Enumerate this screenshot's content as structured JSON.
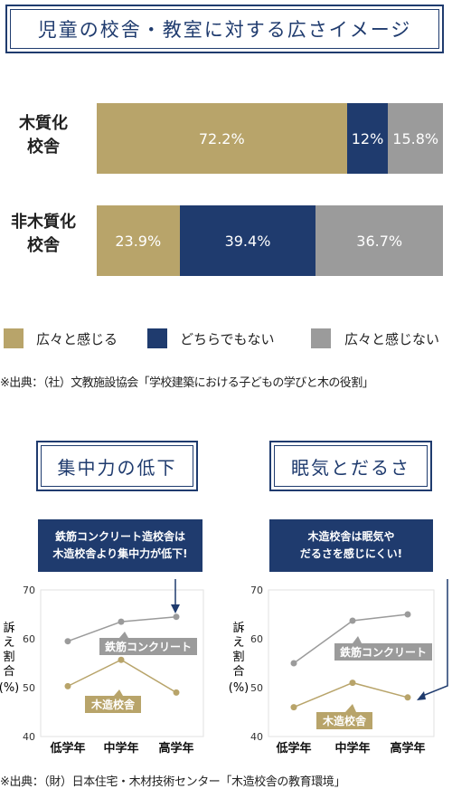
{
  "top_title": "児童の校舎・教室に対する広さイメージ",
  "rows": [
    {
      "label_lines": [
        "木質化",
        "校舎"
      ],
      "values": [
        72.2,
        12,
        15.8
      ],
      "labels": [
        "72.2%",
        "12%",
        "15.8%"
      ]
    },
    {
      "label_lines": [
        "非木質化",
        "校舎"
      ],
      "values": [
        23.9,
        39.4,
        36.7
      ],
      "labels": [
        "23.9%",
        "39.4%",
        "36.7%"
      ]
    }
  ],
  "legend": [
    {
      "label": "広々と感じる",
      "color": "#b8a46a"
    },
    {
      "label": "どちらでもない",
      "color": "#1f3b6e"
    },
    {
      "label": "広々と感じない",
      "color": "#9b9b9b"
    }
  ],
  "note1": "※出典：（社）文教施設協会「学校建築における子どもの学びと木の役割」",
  "note2": "※出典：（財）日本住宅・木材技術センター「木造校舎の教育環境」",
  "left_panel": {
    "title": "集中力の低下",
    "callout_lines": [
      "鉄筋コンクリート造校舎は",
      "木造校舎より集中力が低下!"
    ],
    "ylabel_chars": [
      "訴",
      "え",
      "割",
      "合"
    ],
    "yunit": "(%)"
  },
  "right_panel": {
    "title": "眠気とだるさ",
    "callout_lines": [
      "木造校舎は眠気や",
      "だるさを感じにくい!"
    ],
    "ylabel_chars": [
      "訴",
      "え",
      "割",
      "合"
    ],
    "yunit": "(%)"
  },
  "chart_data": [
    {
      "type": "bar",
      "orientation": "horizontal-stacked",
      "title": "児童の校舎・教室に対する広さイメージ",
      "categories": [
        "木質化校舎",
        "非木質化校舎"
      ],
      "series": [
        {
          "name": "広々と感じる",
          "values": [
            72.2,
            23.9
          ]
        },
        {
          "name": "どちらでもない",
          "values": [
            12,
            39.4
          ]
        },
        {
          "name": "広々と感じない",
          "values": [
            15.8,
            36.7
          ]
        }
      ],
      "legend_position": "bottom"
    },
    {
      "type": "line",
      "title": "集中力の低下",
      "categories": [
        "低学年",
        "中学年",
        "高学年"
      ],
      "series": [
        {
          "name": "鉄筋コンクリート",
          "values": [
            59.5,
            63.5,
            64.5
          ],
          "color": "#9b9b9b"
        },
        {
          "name": "木造校舎",
          "values": [
            50.3,
            55.7,
            49.0
          ],
          "color": "#b8a46a"
        }
      ],
      "ylim": [
        40,
        70
      ],
      "yticks": [
        40,
        50,
        60,
        70
      ],
      "ylabel": "訴え割合(%)",
      "grid": false
    },
    {
      "type": "line",
      "title": "眠気とだるさ",
      "categories": [
        "低学年",
        "中学年",
        "高学年"
      ],
      "series": [
        {
          "name": "鉄筋コンクリート",
          "values": [
            55.0,
            63.7,
            65.0
          ],
          "color": "#9b9b9b"
        },
        {
          "name": "木造校舎",
          "values": [
            46.0,
            51.0,
            48.0
          ],
          "color": "#b8a46a"
        }
      ],
      "ylim": [
        40,
        70
      ],
      "yticks": [
        40,
        50,
        60,
        70
      ],
      "ylabel": "訴え割合(%)",
      "grid": false
    }
  ]
}
